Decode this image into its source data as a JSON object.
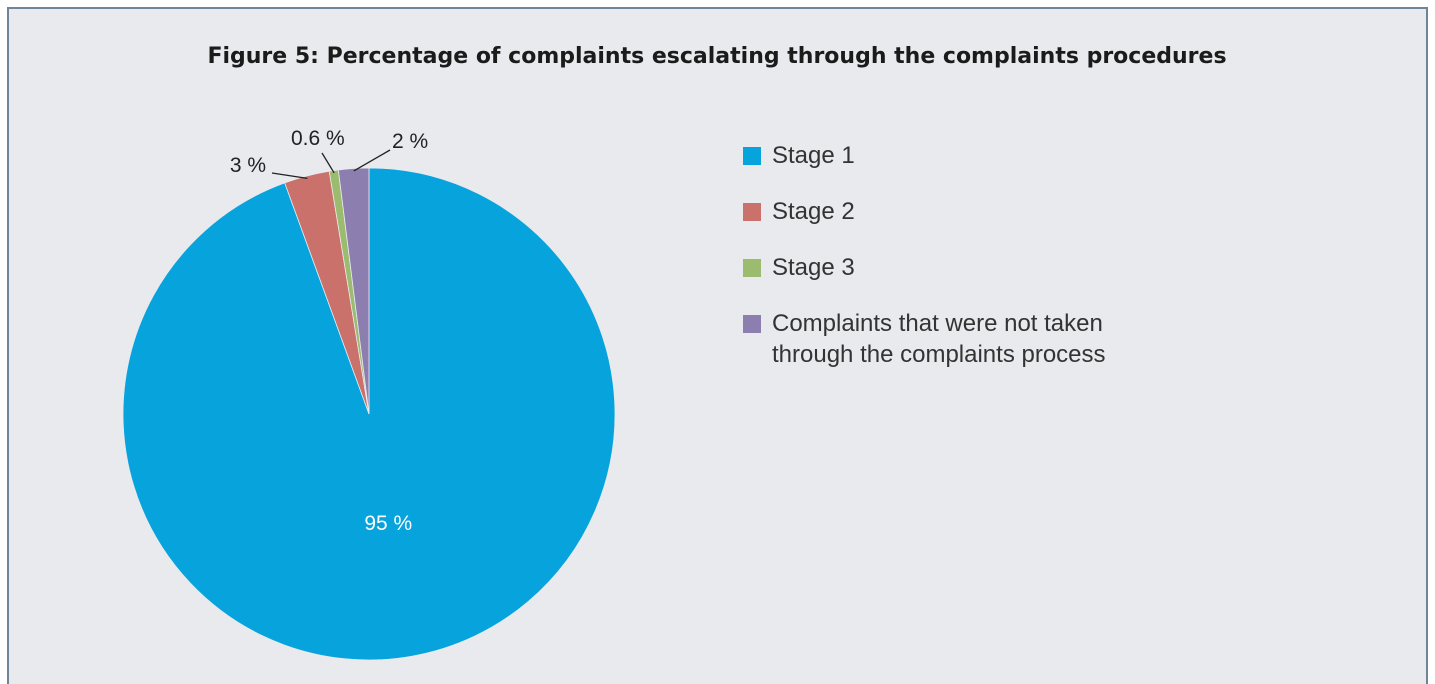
{
  "chart_data": {
    "type": "pie",
    "title": "Figure 5: Percentage of complaints escalating through the complaints procedures",
    "categories": [
      "Stage 1",
      "Stage 2",
      "Stage 3",
      "Complaints that were not taken through the complaints process"
    ],
    "values": [
      95,
      3,
      0.6,
      2
    ],
    "value_labels": [
      "95 %",
      "3 %",
      "0.6 %",
      "2 %"
    ],
    "colors": [
      "#07a3dd",
      "#c9716a",
      "#9bbb6f",
      "#8c7fb0"
    ]
  }
}
